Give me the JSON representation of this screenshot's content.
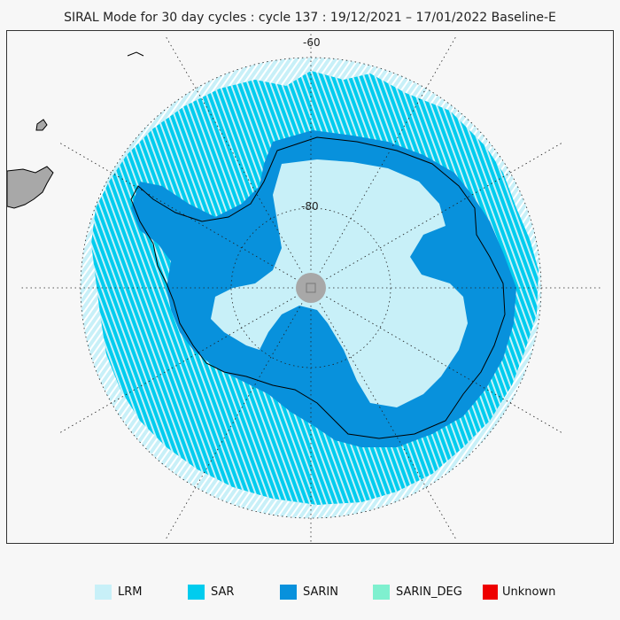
{
  "title": "SIRAL Mode for 30 day cycles : cycle 137 : 19/12/2021 – 17/01/2022 Baseline-E",
  "map": {
    "projection": "south-polar-stereographic",
    "latitude_labels": [
      "-60",
      "-80"
    ],
    "colors": {
      "background": "#f7f7f7",
      "land": "#a8a8a8",
      "pole_hole": "#a8a8a8",
      "coastline": "#000000",
      "graticule": "#222222"
    }
  },
  "legend": [
    {
      "label": "LRM",
      "color": "#c8f0f8"
    },
    {
      "label": "SAR",
      "color": "#00ccee"
    },
    {
      "label": "SARIN",
      "color": "#0891dc"
    },
    {
      "label": "SARIN_DEG",
      "color": "#7ff0cf"
    },
    {
      "label": "Unknown",
      "color": "#ee0000"
    }
  ]
}
